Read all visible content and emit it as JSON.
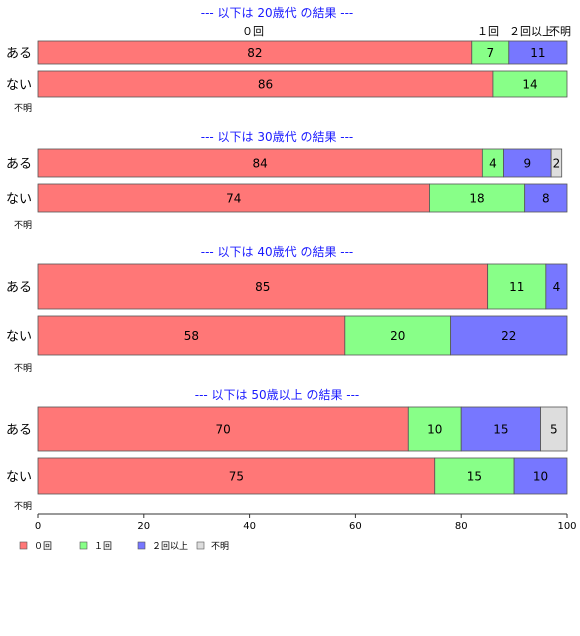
{
  "chart_data": {
    "type": "bar",
    "orientation": "horizontal",
    "stacked": true,
    "categories": [
      "０回",
      "１回",
      "２回以上",
      "不明"
    ],
    "colors": {
      "０回": "#ff7777",
      "１回": "#88ff88",
      "２回以上": "#7777ff",
      "不明": "#dddddd"
    },
    "column_headers": [
      "０回",
      "１回",
      "２回以上",
      "不明"
    ],
    "panels": [
      {
        "title": "--- 以下は 20歳代 の結果 ---",
        "rows": [
          {
            "label": "ある",
            "values": [
              82,
              7,
              11,
              0
            ]
          },
          {
            "label": "ない",
            "values": [
              86,
              14,
              0,
              0
            ]
          }
        ],
        "note": "不明"
      },
      {
        "title": "--- 以下は 30歳代 の結果 ---",
        "rows": [
          {
            "label": "ある",
            "values": [
              84,
              4,
              9,
              2
            ]
          },
          {
            "label": "ない",
            "values": [
              74,
              18,
              8,
              0
            ]
          }
        ],
        "note": "不明"
      },
      {
        "title": "--- 以下は 40歳代 の結果 ---",
        "rows": [
          {
            "label": "ある",
            "values": [
              85,
              11,
              4,
              0
            ]
          },
          {
            "label": "ない",
            "values": [
              58,
              20,
              22,
              0
            ]
          }
        ],
        "note": "不明"
      },
      {
        "title": "--- 以下は 50歳以上 の結果 ---",
        "rows": [
          {
            "label": "ある",
            "values": [
              70,
              10,
              15,
              5
            ]
          },
          {
            "label": "ない",
            "values": [
              75,
              15,
              10,
              0
            ]
          }
        ],
        "note": "不明"
      }
    ],
    "xlim": [
      0,
      100
    ],
    "xticks": [
      "0",
      "20",
      "40",
      "60",
      "80",
      "100"
    ],
    "legend": [
      "０回",
      "１回",
      "２回以上",
      "不明"
    ],
    "legend_position": "bottom-left"
  }
}
